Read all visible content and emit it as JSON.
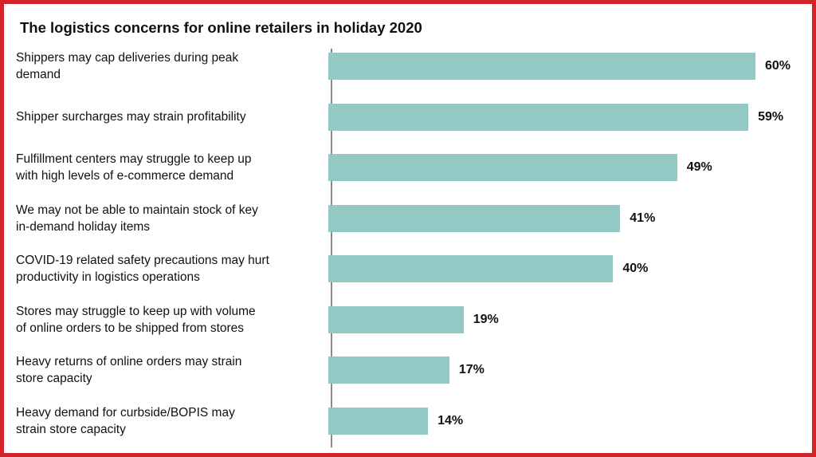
{
  "chart_data": {
    "type": "bar",
    "orientation": "horizontal",
    "title": "The logistics concerns for online retailers in holiday 2020",
    "categories": [
      [
        "Shippers may cap deliveries during peak",
        "demand"
      ],
      [
        "Shipper surcharges may strain profitability"
      ],
      [
        "Fulfillment centers may struggle to keep up",
        "with high levels of e-commerce demand"
      ],
      [
        "We may not be able to maintain stock of key",
        "in-demand holiday items"
      ],
      [
        "COVID-19 related safety precautions may hurt",
        "productivity in logistics operations"
      ],
      [
        "Stores may struggle to keep up with volume",
        "of online orders to be shipped from stores"
      ],
      [
        "Heavy returns of online orders may strain",
        "store capacity"
      ],
      [
        "Heavy demand for curbside/BOPIS may",
        "strain store capacity"
      ]
    ],
    "values": [
      60,
      59,
      49,
      41,
      40,
      19,
      17,
      14
    ],
    "value_labels": [
      "60%",
      "59%",
      "49%",
      "41%",
      "40%",
      "19%",
      "17%",
      "14%"
    ],
    "xlim": [
      0,
      60
    ],
    "grid": false,
    "legend": "none",
    "colors": {
      "bar": "#93c9c4",
      "frame": "#d2232a",
      "axis": "#8a8a8a"
    }
  }
}
